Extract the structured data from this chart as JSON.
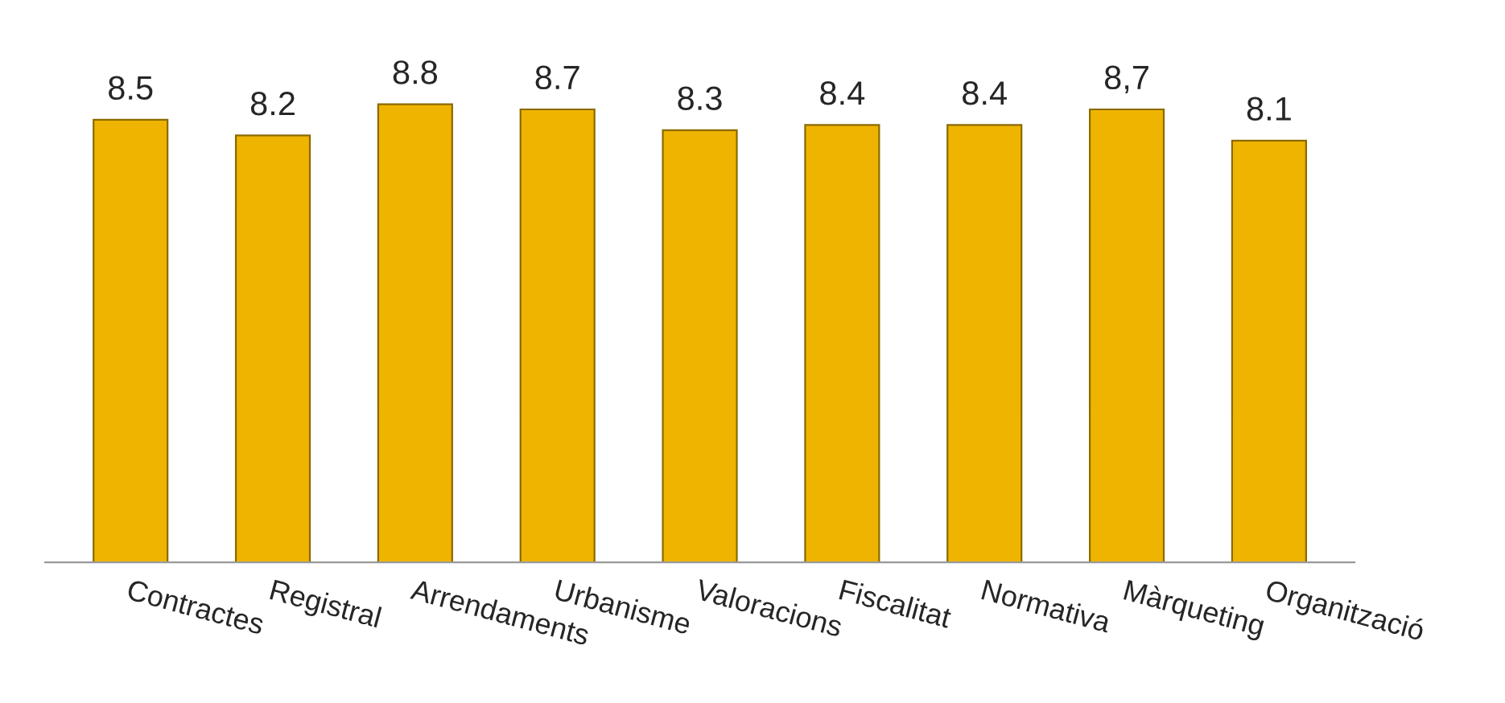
{
  "chart_data": {
    "type": "bar",
    "categories": [
      "Contractes",
      "Registral",
      "Arrendaments",
      "Urbanisme",
      "Valoracions",
      "Fiscalitat",
      "Normativa",
      "Màrqueting",
      "Organització"
    ],
    "values": [
      8.5,
      8.2,
      8.8,
      8.7,
      8.3,
      8.4,
      8.4,
      8.7,
      8.1
    ],
    "value_labels": [
      "8.5",
      "8.2",
      "8.8",
      "8.7",
      "8.3",
      "8.4",
      "8.4",
      "8,7",
      "8.1"
    ],
    "color": "#efb400",
    "grid": false,
    "legend": false
  }
}
